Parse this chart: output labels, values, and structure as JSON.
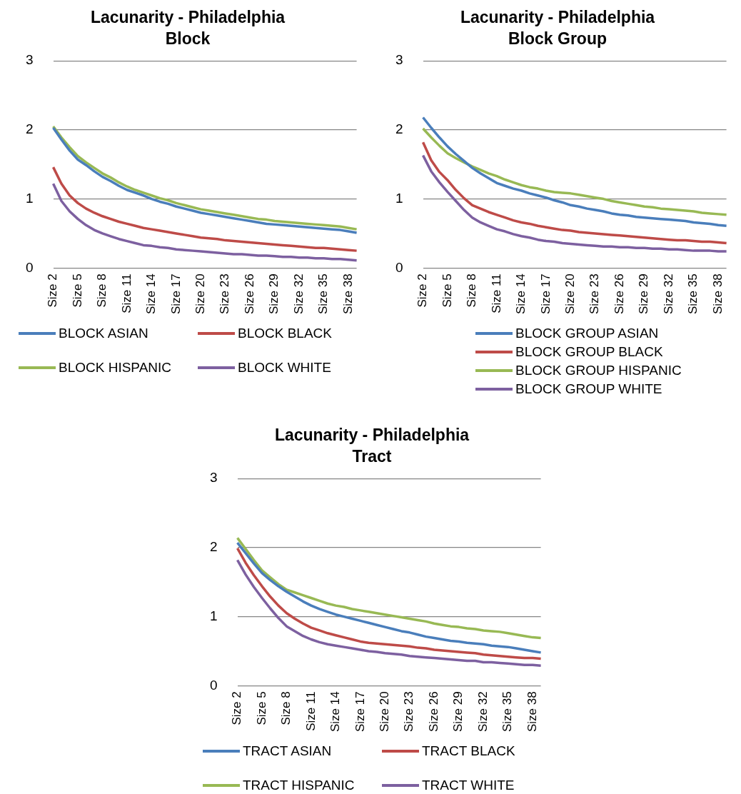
{
  "chart_data": [
    {
      "type": "line",
      "title": "Lacunarity - Philadelphia",
      "subtitle": "Block",
      "categories": [
        "Size 2",
        null,
        null,
        "Size 5",
        null,
        null,
        "Size 8",
        null,
        null,
        "Size 11",
        null,
        null,
        "Size 14",
        null,
        null,
        "Size 17",
        null,
        null,
        "Size 20",
        null,
        null,
        "Size 23",
        null,
        null,
        "Size 26",
        null,
        null,
        "Size 29",
        null,
        null,
        "Size 32",
        null,
        null,
        "Size 35",
        null,
        null,
        "Size 38",
        null
      ],
      "ylim": [
        0,
        3
      ],
      "yticks": [
        0,
        1,
        2,
        3
      ],
      "grid": "y",
      "legend": "bottom",
      "marker": "none",
      "line_style": "solid",
      "series": [
        {
          "name": "BLOCK ASIAN",
          "color": "#4a7ebb",
          "values": [
            2.03,
            1.86,
            1.7,
            1.57,
            1.49,
            1.4,
            1.32,
            1.26,
            1.19,
            1.13,
            1.09,
            1.05,
            1.0,
            0.96,
            0.93,
            0.89,
            0.86,
            0.83,
            0.8,
            0.78,
            0.76,
            0.74,
            0.72,
            0.7,
            0.68,
            0.66,
            0.64,
            0.63,
            0.62,
            0.61,
            0.6,
            0.59,
            0.58,
            0.57,
            0.56,
            0.55,
            0.53,
            0.51
          ]
        },
        {
          "name": "BLOCK BLACK",
          "color": "#be4b48",
          "values": [
            1.46,
            1.22,
            1.05,
            0.94,
            0.86,
            0.8,
            0.75,
            0.71,
            0.67,
            0.64,
            0.61,
            0.58,
            0.56,
            0.54,
            0.52,
            0.5,
            0.48,
            0.46,
            0.44,
            0.43,
            0.42,
            0.4,
            0.39,
            0.38,
            0.37,
            0.36,
            0.35,
            0.34,
            0.33,
            0.32,
            0.31,
            0.3,
            0.29,
            0.29,
            0.28,
            0.27,
            0.26,
            0.25
          ]
        },
        {
          "name": "BLOCK HISPANIC",
          "color": "#98b954",
          "values": [
            2.05,
            1.89,
            1.75,
            1.62,
            1.53,
            1.45,
            1.37,
            1.31,
            1.24,
            1.18,
            1.13,
            1.09,
            1.05,
            1.01,
            0.98,
            0.94,
            0.91,
            0.88,
            0.85,
            0.83,
            0.81,
            0.79,
            0.77,
            0.75,
            0.73,
            0.71,
            0.7,
            0.68,
            0.67,
            0.66,
            0.65,
            0.64,
            0.63,
            0.62,
            0.61,
            0.6,
            0.58,
            0.56
          ]
        },
        {
          "name": "BLOCK WHITE",
          "color": "#7d60a0",
          "values": [
            1.22,
            0.97,
            0.82,
            0.71,
            0.62,
            0.55,
            0.5,
            0.46,
            0.42,
            0.39,
            0.36,
            0.33,
            0.32,
            0.3,
            0.29,
            0.27,
            0.26,
            0.25,
            0.24,
            0.23,
            0.22,
            0.21,
            0.2,
            0.2,
            0.19,
            0.18,
            0.18,
            0.17,
            0.16,
            0.16,
            0.15,
            0.15,
            0.14,
            0.14,
            0.13,
            0.13,
            0.12,
            0.11
          ]
        }
      ]
    },
    {
      "type": "line",
      "title": "Lacunarity - Philadelphia",
      "subtitle": "Block Group",
      "categories": [
        "Size 2",
        null,
        null,
        "Size 5",
        null,
        null,
        "Size 8",
        null,
        null,
        "Size 11",
        null,
        null,
        "Size 14",
        null,
        null,
        "Size 17",
        null,
        null,
        "Size 20",
        null,
        null,
        "Size 23",
        null,
        null,
        "Size 26",
        null,
        null,
        "Size 29",
        null,
        null,
        "Size 32",
        null,
        null,
        "Size 35",
        null,
        null,
        "Size 38",
        null
      ],
      "ylim": [
        0,
        3
      ],
      "yticks": [
        0,
        1,
        2,
        3
      ],
      "grid": "y",
      "legend": "bottom",
      "marker": "none",
      "line_style": "solid",
      "series": [
        {
          "name": "BLOCK GROUP ASIAN",
          "color": "#4a7ebb",
          "values": [
            2.18,
            2.03,
            1.89,
            1.76,
            1.65,
            1.55,
            1.45,
            1.37,
            1.3,
            1.23,
            1.19,
            1.15,
            1.12,
            1.08,
            1.05,
            1.02,
            0.98,
            0.95,
            0.91,
            0.89,
            0.86,
            0.84,
            0.82,
            0.79,
            0.77,
            0.76,
            0.74,
            0.73,
            0.72,
            0.71,
            0.7,
            0.69,
            0.68,
            0.66,
            0.65,
            0.64,
            0.62,
            0.61
          ]
        },
        {
          "name": "BLOCK GROUP BLACK",
          "color": "#be4b48",
          "values": [
            1.82,
            1.56,
            1.39,
            1.27,
            1.13,
            1.01,
            0.91,
            0.86,
            0.81,
            0.77,
            0.73,
            0.69,
            0.66,
            0.64,
            0.61,
            0.59,
            0.57,
            0.55,
            0.54,
            0.52,
            0.51,
            0.5,
            0.49,
            0.48,
            0.47,
            0.46,
            0.45,
            0.44,
            0.43,
            0.42,
            0.41,
            0.4,
            0.4,
            0.39,
            0.38,
            0.38,
            0.37,
            0.36
          ]
        },
        {
          "name": "BLOCK GROUP HISPANIC",
          "color": "#98b954",
          "values": [
            2.02,
            1.89,
            1.77,
            1.66,
            1.59,
            1.53,
            1.47,
            1.42,
            1.37,
            1.33,
            1.28,
            1.24,
            1.2,
            1.17,
            1.15,
            1.12,
            1.1,
            1.09,
            1.08,
            1.06,
            1.04,
            1.02,
            1.0,
            0.97,
            0.95,
            0.93,
            0.91,
            0.89,
            0.88,
            0.86,
            0.85,
            0.84,
            0.83,
            0.82,
            0.8,
            0.79,
            0.78,
            0.77
          ]
        },
        {
          "name": "BLOCK GROUP WHITE",
          "color": "#7d60a0",
          "values": [
            1.63,
            1.4,
            1.24,
            1.1,
            0.97,
            0.84,
            0.73,
            0.66,
            0.61,
            0.56,
            0.53,
            0.49,
            0.46,
            0.44,
            0.41,
            0.39,
            0.38,
            0.36,
            0.35,
            0.34,
            0.33,
            0.32,
            0.31,
            0.31,
            0.3,
            0.3,
            0.29,
            0.29,
            0.28,
            0.28,
            0.27,
            0.27,
            0.26,
            0.25,
            0.25,
            0.25,
            0.24,
            0.24
          ]
        }
      ]
    },
    {
      "type": "line",
      "title": "Lacunarity - Philadelphia",
      "subtitle": "Tract",
      "categories": [
        "Size 2",
        null,
        null,
        "Size 5",
        null,
        null,
        "Size 8",
        null,
        null,
        "Size 11",
        null,
        null,
        "Size 14",
        null,
        null,
        "Size 17",
        null,
        null,
        "Size 20",
        null,
        null,
        "Size 23",
        null,
        null,
        "Size 26",
        null,
        null,
        "Size 29",
        null,
        null,
        "Size 32",
        null,
        null,
        "Size 35",
        null,
        null,
        "Size 38",
        null
      ],
      "ylim": [
        0,
        3
      ],
      "yticks": [
        0,
        1,
        2,
        3
      ],
      "grid": "y",
      "legend": "bottom",
      "marker": "none",
      "line_style": "solid",
      "series": [
        {
          "name": "TRACT ASIAN",
          "color": "#4a7ebb",
          "values": [
            2.07,
            1.92,
            1.77,
            1.63,
            1.53,
            1.44,
            1.36,
            1.29,
            1.22,
            1.16,
            1.11,
            1.07,
            1.03,
            1.0,
            0.97,
            0.94,
            0.91,
            0.88,
            0.85,
            0.82,
            0.79,
            0.77,
            0.74,
            0.71,
            0.69,
            0.67,
            0.65,
            0.64,
            0.62,
            0.61,
            0.6,
            0.58,
            0.57,
            0.56,
            0.54,
            0.52,
            0.5,
            0.48
          ]
        },
        {
          "name": "TRACT BLACK",
          "color": "#be4b48",
          "values": [
            1.99,
            1.78,
            1.6,
            1.44,
            1.29,
            1.16,
            1.05,
            0.97,
            0.9,
            0.84,
            0.8,
            0.76,
            0.73,
            0.7,
            0.67,
            0.64,
            0.62,
            0.61,
            0.6,
            0.59,
            0.58,
            0.57,
            0.55,
            0.54,
            0.52,
            0.51,
            0.5,
            0.49,
            0.48,
            0.47,
            0.45,
            0.44,
            0.43,
            0.42,
            0.41,
            0.4,
            0.4,
            0.39
          ]
        },
        {
          "name": "TRACT HISPANIC",
          "color": "#98b954",
          "values": [
            2.14,
            1.98,
            1.82,
            1.67,
            1.57,
            1.47,
            1.39,
            1.35,
            1.31,
            1.27,
            1.23,
            1.19,
            1.16,
            1.14,
            1.11,
            1.09,
            1.07,
            1.05,
            1.03,
            1.01,
            0.99,
            0.97,
            0.95,
            0.93,
            0.9,
            0.88,
            0.86,
            0.85,
            0.83,
            0.82,
            0.8,
            0.79,
            0.78,
            0.76,
            0.74,
            0.72,
            0.7,
            0.69
          ]
        },
        {
          "name": "TRACT WHITE",
          "color": "#7d60a0",
          "values": [
            1.82,
            1.61,
            1.43,
            1.27,
            1.12,
            0.98,
            0.86,
            0.79,
            0.72,
            0.67,
            0.63,
            0.6,
            0.58,
            0.56,
            0.54,
            0.52,
            0.5,
            0.49,
            0.47,
            0.46,
            0.45,
            0.43,
            0.42,
            0.41,
            0.4,
            0.39,
            0.38,
            0.37,
            0.36,
            0.36,
            0.34,
            0.34,
            0.33,
            0.32,
            0.31,
            0.3,
            0.3,
            0.29
          ]
        }
      ]
    }
  ]
}
